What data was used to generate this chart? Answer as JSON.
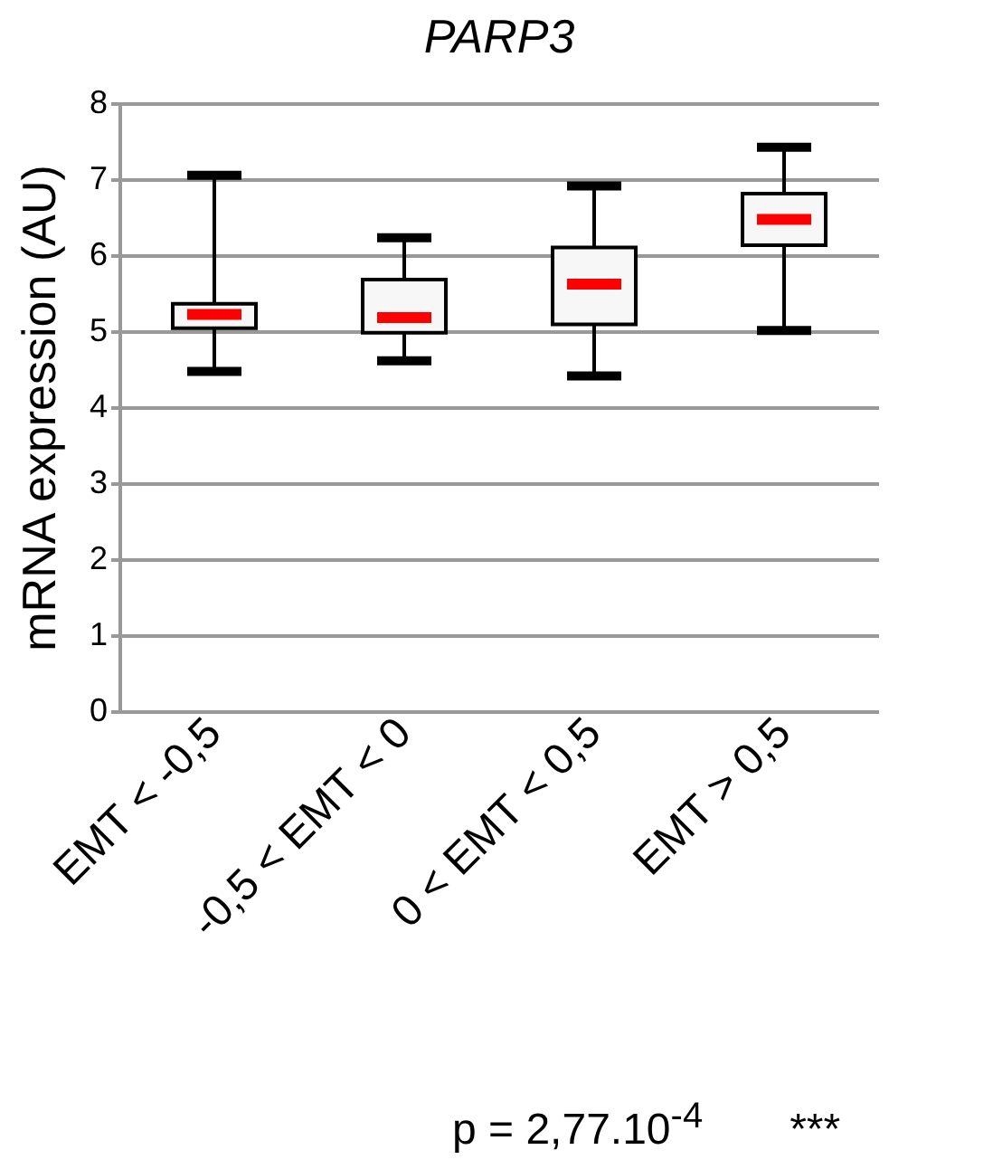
{
  "chart_data": {
    "type": "box",
    "title": "PARP3",
    "ylabel": "mRNA expression (AU)",
    "categories": [
      "EMT < -0,5",
      "-0,5 < EMT < 0",
      "0 < EMT < 0,5",
      "EMT > 0,5"
    ],
    "boxes": [
      {
        "low": 4.47,
        "q1": 5.04,
        "median": 5.22,
        "q3": 5.36,
        "high": 7.05
      },
      {
        "low": 4.61,
        "q1": 4.98,
        "median": 5.18,
        "q3": 5.68,
        "high": 6.23
      },
      {
        "low": 4.41,
        "q1": 5.09,
        "median": 5.62,
        "q3": 6.1,
        "high": 6.91
      },
      {
        "low": 5.01,
        "q1": 6.13,
        "median": 6.47,
        "q3": 6.81,
        "high": 7.42
      }
    ],
    "ylim": [
      0,
      8
    ],
    "yticks": [
      0,
      1,
      2,
      3,
      4,
      5,
      6,
      7,
      8
    ],
    "grid": "y",
    "annotations": [
      "p = 2,77.10$^{-4}$",
      "***"
    ]
  }
}
